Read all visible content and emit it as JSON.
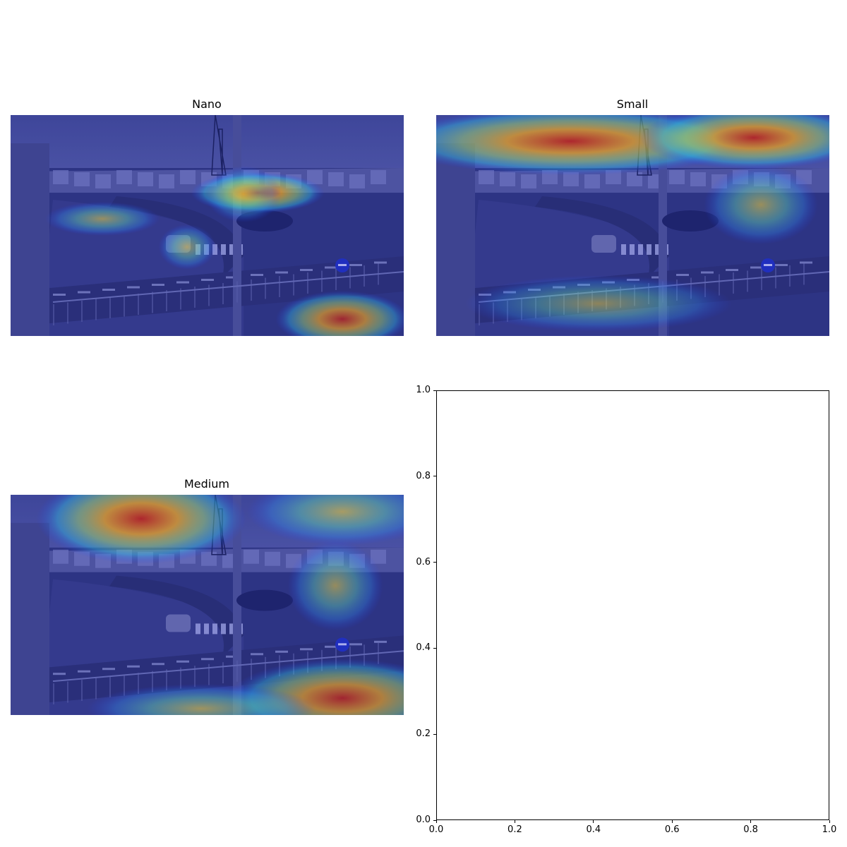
{
  "chart_data": [
    {
      "type": "heatmap",
      "title": "Nano",
      "description_kind": "image-overlay",
      "hotspots": [
        {
          "region": "road-center-cars",
          "intensity": 1.0
        },
        {
          "region": "roundabout-tree",
          "intensity": 0.6
        },
        {
          "region": "lower-right-grass",
          "intensity": 0.8
        },
        {
          "region": "left-tree",
          "intensity": 0.6
        },
        {
          "region": "white-car",
          "intensity": 0.55
        }
      ]
    },
    {
      "type": "heatmap",
      "title": "Small",
      "description_kind": "image-overlay",
      "hotspots": [
        {
          "region": "sky-left",
          "intensity": 1.0
        },
        {
          "region": "sky-right",
          "intensity": 1.0
        },
        {
          "region": "right-trees",
          "intensity": 0.65
        },
        {
          "region": "lower-fence",
          "intensity": 0.5
        }
      ]
    },
    {
      "type": "heatmap",
      "title": "Medium",
      "description_kind": "image-overlay",
      "hotspots": [
        {
          "region": "sky-left",
          "intensity": 1.0
        },
        {
          "region": "sky-right",
          "intensity": 0.75
        },
        {
          "region": "lower-right-grass",
          "intensity": 0.85
        },
        {
          "region": "lower-middle-grass",
          "intensity": 0.7
        },
        {
          "region": "right-tree",
          "intensity": 0.6
        }
      ]
    },
    {
      "type": "line",
      "title": "",
      "xlim": [
        0.0,
        1.0
      ],
      "ylim": [
        0.0,
        1.0
      ],
      "xticks": [
        "0.0",
        "0.2",
        "0.4",
        "0.6",
        "0.8",
        "1.0"
      ],
      "yticks": [
        "0.0",
        "0.2",
        "0.4",
        "0.6",
        "0.8",
        "1.0"
      ],
      "series": []
    }
  ]
}
